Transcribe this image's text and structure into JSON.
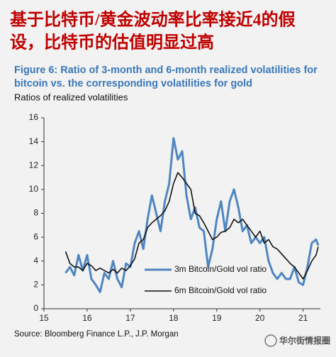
{
  "chart_data": {
    "type": "line",
    "headline": [
      "基于比特币/黄金波动率比率接近4的假",
      "设，比特币的估值明显过高"
    ],
    "title": [
      "Figure 6: Ratio of 3-month and 6-month realized volatilities for",
      "bitcoin vs. the corresponding volatilities for gold"
    ],
    "subtitle": "Ratios of realized volatilities",
    "source": "Source: Bloomberg Finance L.P., J.P. Morgan",
    "watermark": "华尔街情报圈",
    "x": [
      15.5,
      15.6,
      15.7,
      15.8,
      15.9,
      16.0,
      16.1,
      16.2,
      16.3,
      16.4,
      16.5,
      16.6,
      16.7,
      16.8,
      16.9,
      17.0,
      17.1,
      17.2,
      17.3,
      17.4,
      17.5,
      17.6,
      17.7,
      17.8,
      17.9,
      18.0,
      18.1,
      18.2,
      18.3,
      18.4,
      18.5,
      18.6,
      18.7,
      18.8,
      18.9,
      19.0,
      19.1,
      19.2,
      19.3,
      19.4,
      19.5,
      19.6,
      19.7,
      19.8,
      19.9,
      20.0,
      20.1,
      20.2,
      20.3,
      20.4,
      20.5,
      20.6,
      20.7,
      20.8,
      20.9,
      21.0,
      21.1,
      21.2,
      21.3,
      21.35
    ],
    "series": [
      {
        "name": "3m Bitcoin/Gold vol ratio",
        "color": "#4f86c0",
        "width": 3,
        "values": [
          3.0,
          3.5,
          2.8,
          4.5,
          3.2,
          4.5,
          2.5,
          2.0,
          1.4,
          3.0,
          2.5,
          4.0,
          2.5,
          1.8,
          3.8,
          3.5,
          5.5,
          6.5,
          5.0,
          7.5,
          9.5,
          8.0,
          6.5,
          9.0,
          10.5,
          14.3,
          12.5,
          13.2,
          9.5,
          7.5,
          8.5,
          6.8,
          6.5,
          3.5,
          5.0,
          7.5,
          9.0,
          6.5,
          9.0,
          10.0,
          8.5,
          6.5,
          7.0,
          5.5,
          6.0,
          5.5,
          6.0,
          4.0,
          3.0,
          2.5,
          3.0,
          2.5,
          2.5,
          3.5,
          2.2,
          2.0,
          3.5,
          5.5,
          5.8,
          5.3
        ]
      },
      {
        "name": "6m Bitcoin/Gold vol ratio",
        "color": "#111111",
        "width": 1.6,
        "values": [
          4.8,
          3.8,
          3.5,
          3.5,
          3.2,
          3.8,
          3.6,
          3.2,
          3.4,
          3.2,
          3.0,
          3.3,
          3.0,
          3.4,
          3.2,
          3.6,
          4.2,
          5.5,
          5.8,
          6.8,
          7.2,
          7.5,
          7.8,
          8.2,
          9.0,
          10.5,
          11.4,
          11.0,
          10.5,
          10.0,
          8.0,
          7.8,
          7.2,
          6.5,
          5.8,
          6.0,
          6.4,
          6.5,
          6.8,
          7.5,
          7.2,
          7.5,
          7.0,
          6.5,
          6.0,
          6.5,
          5.5,
          5.8,
          5.2,
          5.0,
          4.6,
          4.2,
          3.8,
          3.5,
          3.0,
          2.5,
          3.2,
          4.0,
          4.5,
          5.2
        ]
      }
    ],
    "xlim": [
      15,
      21.4
    ],
    "xticks": [
      15,
      16,
      17,
      18,
      19,
      20,
      21
    ],
    "ylim": [
      0,
      16
    ],
    "yticks": [
      0,
      2,
      4,
      6,
      8,
      10,
      12,
      14,
      16
    ],
    "legend": "lower right",
    "grid": false
  }
}
